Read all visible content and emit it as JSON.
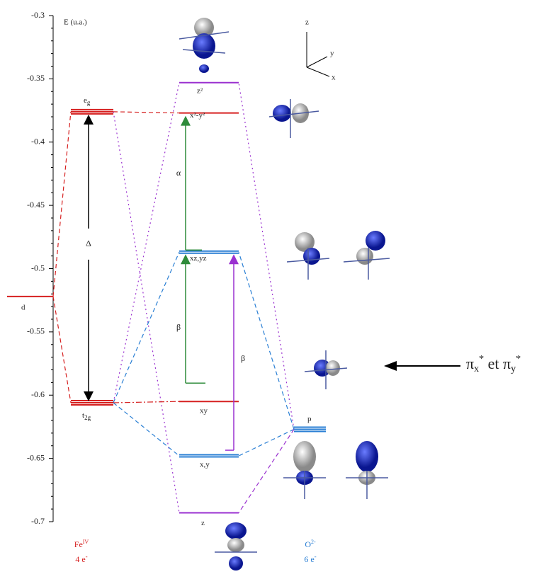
{
  "axis": {
    "title": "E (u.a.)",
    "ylim": [
      -0.7,
      -0.3
    ],
    "yticks": [
      -0.3,
      -0.35,
      -0.4,
      -0.45,
      -0.5,
      -0.55,
      -0.6,
      -0.65,
      -0.7
    ]
  },
  "levels": [
    {
      "label": "d",
      "energy": -0.522,
      "color": "#d62020"
    },
    {
      "label": {
        "base": "e",
        "sub": "g"
      },
      "energy": -0.376,
      "color": "#d62020"
    },
    {
      "label": {
        "base": "t",
        "sub": "2g"
      },
      "energy": -0.606,
      "color": "#d62020"
    },
    {
      "label": "z²",
      "energy": -0.353,
      "color": "#9a30d0"
    },
    {
      "label": "x²-y²",
      "energy": -0.377,
      "color": "#d62020"
    },
    {
      "label": "xz,yz",
      "energy": -0.487,
      "color": "#2a7fd4"
    },
    {
      "label": "xy",
      "energy": -0.605,
      "color": "#d62020"
    },
    {
      "label": "x,y",
      "energy": -0.648,
      "color": "#2a7fd4"
    },
    {
      "label": "z",
      "energy": -0.693,
      "color": "#9a30d0"
    },
    {
      "label": "p",
      "energy": -0.627,
      "color": "#2a7fd4"
    }
  ],
  "transitions": [
    {
      "label": "Δ",
      "color": "#000000"
    },
    {
      "label": "α",
      "color": "#2e8b3a"
    },
    {
      "label": "β",
      "color": "#2e8b3a"
    },
    {
      "label": "β",
      "color": "#9a30d0"
    }
  ],
  "frame_axes": {
    "z": "z",
    "y": "y",
    "x": "x"
  },
  "fragments": [
    {
      "base": "Fe",
      "sup": "IV",
      "electrons": "4 e",
      "charge": "-",
      "color": "#d62020"
    },
    {
      "base": "O",
      "sup": "2-",
      "electrons": "6 e",
      "charge": "-",
      "color": "#2a7fd4"
    }
  ],
  "annotation": {
    "p1": "π",
    "s1": "x",
    "e1": "*",
    "mid": " et π",
    "s2": "y",
    "e2": "*"
  }
}
